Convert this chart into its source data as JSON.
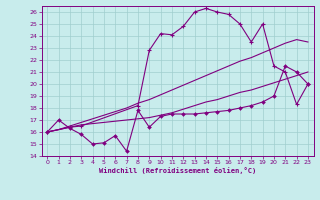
{
  "xlabel": "Windchill (Refroidissement éolien,°C)",
  "bg_color": "#c8ecec",
  "grid_color": "#a0cece",
  "line_color": "#800080",
  "xlim": [
    -0.5,
    23.5
  ],
  "ylim": [
    14,
    26.5
  ],
  "xticks": [
    0,
    1,
    2,
    3,
    4,
    5,
    6,
    7,
    8,
    9,
    10,
    11,
    12,
    13,
    14,
    15,
    16,
    17,
    18,
    19,
    20,
    21,
    22,
    23
  ],
  "yticks": [
    14,
    15,
    16,
    17,
    18,
    19,
    20,
    21,
    22,
    23,
    24,
    25,
    26
  ],
  "line1_x": [
    0,
    1,
    2,
    3,
    4,
    5,
    6,
    7,
    8,
    9,
    10,
    11,
    12,
    13,
    14,
    15,
    16,
    17,
    18,
    19,
    20,
    21,
    22,
    23
  ],
  "line1_y": [
    16.0,
    17.0,
    16.3,
    15.8,
    15.0,
    15.1,
    15.7,
    14.4,
    17.8,
    16.4,
    17.3,
    17.5,
    17.5,
    17.5,
    17.6,
    17.7,
    17.8,
    18.0,
    18.2,
    18.5,
    19.0,
    21.5,
    21.0,
    20.0
  ],
  "line2_x": [
    0,
    1,
    2,
    3,
    4,
    5,
    6,
    7,
    8,
    9,
    10,
    11,
    12,
    13,
    14,
    15,
    16,
    17,
    18,
    19,
    20,
    21,
    22,
    23
  ],
  "line2_y": [
    16.0,
    16.2,
    16.4,
    16.6,
    16.7,
    16.8,
    16.9,
    17.0,
    17.1,
    17.2,
    17.4,
    17.6,
    17.9,
    18.2,
    18.5,
    18.7,
    19.0,
    19.3,
    19.5,
    19.8,
    20.1,
    20.4,
    20.7,
    21.0
  ],
  "line3_x": [
    0,
    1,
    2,
    3,
    4,
    5,
    6,
    7,
    8,
    9,
    10,
    11,
    12,
    13,
    14,
    15,
    16,
    17,
    18,
    19,
    20,
    21,
    22,
    23
  ],
  "line3_y": [
    16.0,
    16.2,
    16.5,
    16.8,
    17.1,
    17.4,
    17.7,
    18.0,
    18.4,
    18.7,
    19.1,
    19.5,
    19.9,
    20.3,
    20.7,
    21.1,
    21.5,
    21.9,
    22.2,
    22.6,
    23.0,
    23.4,
    23.7,
    23.5
  ],
  "line_upper_x": [
    0,
    2,
    3,
    8,
    9,
    10,
    11,
    12,
    13,
    14,
    15,
    16,
    17,
    18,
    19,
    20,
    21,
    22,
    23
  ],
  "line_upper_y": [
    16.0,
    16.4,
    16.5,
    18.2,
    22.8,
    24.2,
    24.1,
    24.8,
    26.0,
    26.3,
    26.0,
    25.8,
    25.0,
    23.5,
    25.0,
    21.5,
    21.0,
    18.3,
    20.0
  ]
}
